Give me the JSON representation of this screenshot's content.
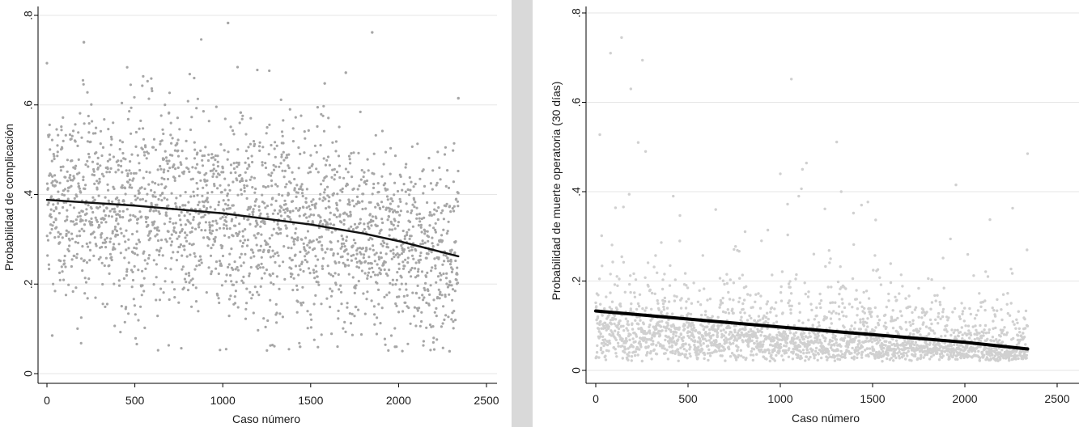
{
  "charts": [
    {
      "type": "scatter",
      "ylabel": "Probabilidad de complicación",
      "xlabel": "Caso número",
      "xlim": [
        0,
        2500
      ],
      "ylim": [
        0,
        0.8
      ],
      "xticks": [
        0,
        500,
        1000,
        1500,
        2000,
        2500
      ],
      "xtick_labels": [
        "0",
        "500",
        "1000",
        "1500",
        "2000",
        "2500"
      ],
      "yticks": [
        0,
        0.2,
        0.4,
        0.6,
        0.8
      ],
      "ytick_labels": [
        "0",
        ".2",
        ".4",
        ".6",
        ".8"
      ],
      "grid": true,
      "point_color": "#a6a6a6",
      "line_color": "#111111",
      "line_width": 2.5,
      "n_points": 2340,
      "trend": [
        [
          0,
          0.388
        ],
        [
          500,
          0.375
        ],
        [
          1000,
          0.358
        ],
        [
          1500,
          0.333
        ],
        [
          1800,
          0.313
        ],
        [
          2000,
          0.296
        ],
        [
          2340,
          0.262
        ]
      ],
      "scatter_band": {
        "center_shift": 0.0,
        "spread": 0.11,
        "min": 0.05,
        "max": 0.79
      },
      "outliers": [
        [
          30,
          0.085
        ],
        [
          1030,
          0.783
        ],
        [
          1850,
          0.762
        ],
        [
          210,
          0.74
        ],
        [
          1700,
          0.672
        ],
        [
          1580,
          0.648
        ],
        [
          1440,
          0.06
        ],
        [
          1980,
          0.06
        ],
        [
          2290,
          0.05
        ],
        [
          2340,
          0.615
        ]
      ]
    },
    {
      "type": "scatter",
      "ylabel": "Probabilidad de muerte operatoria (30 días)",
      "xlabel": "Caso número",
      "xlim": [
        0,
        2500
      ],
      "ylim": [
        0,
        0.8
      ],
      "xticks": [
        0,
        500,
        1000,
        1500,
        2000,
        2500
      ],
      "xtick_labels": [
        "0",
        "500",
        "1000",
        "1500",
        "2000",
        "2500"
      ],
      "yticks": [
        0,
        0.2,
        0.4,
        0.6,
        0.8
      ],
      "ytick_labels": [
        "0",
        ".2",
        ".4",
        ".6",
        ".8"
      ],
      "grid": true,
      "point_color": "#d0d0d0",
      "line_color": "#000000",
      "line_width": 4,
      "n_points": 2340,
      "trend": [
        [
          0,
          0.133
        ],
        [
          500,
          0.115
        ],
        [
          1000,
          0.097
        ],
        [
          1500,
          0.08
        ],
        [
          2000,
          0.063
        ],
        [
          2340,
          0.048
        ]
      ],
      "scatter_band": {
        "center_shift": -0.03,
        "spread": 0.05,
        "min": 0.005,
        "max": 0.75
      },
      "outliers": [
        [
          140,
          0.745
        ],
        [
          80,
          0.71
        ],
        [
          190,
          0.63
        ],
        [
          1060,
          0.652
        ],
        [
          230,
          0.51
        ],
        [
          270,
          0.49
        ],
        [
          2340,
          0.485
        ],
        [
          1000,
          0.44
        ],
        [
          1120,
          0.45
        ],
        [
          1100,
          0.39
        ],
        [
          420,
          0.39
        ],
        [
          1330,
          0.4
        ],
        [
          1440,
          0.37
        ],
        [
          650,
          0.36
        ]
      ]
    }
  ]
}
